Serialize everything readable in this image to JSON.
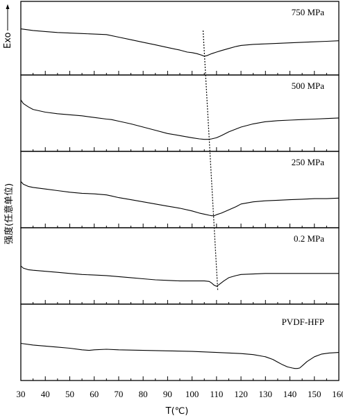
{
  "chart_data": {
    "type": "line",
    "xlabel": "T(℃)",
    "ylabel": "强度(任意单位)",
    "exo_label": "Exo",
    "xlim": [
      30,
      160
    ],
    "xticks": [
      30,
      40,
      50,
      60,
      70,
      80,
      90,
      100,
      110,
      120,
      130,
      140,
      150,
      160
    ],
    "grid": false,
    "legend": "none",
    "panels": [
      {
        "name": "750 MPa",
        "x": [
          30,
          35,
          40,
          45,
          50,
          55,
          60,
          65,
          70,
          75,
          80,
          85,
          90,
          95,
          98,
          100,
          102,
          104,
          105,
          106,
          107,
          108,
          110,
          112,
          115,
          118,
          120,
          125,
          130,
          135,
          140,
          145,
          150,
          155,
          160
        ],
        "y": [
          0.78,
          0.75,
          0.73,
          0.71,
          0.7,
          0.69,
          0.68,
          0.67,
          0.62,
          0.57,
          0.52,
          0.47,
          0.42,
          0.37,
          0.33,
          0.32,
          0.3,
          0.27,
          0.25,
          0.26,
          0.28,
          0.3,
          0.33,
          0.36,
          0.4,
          0.44,
          0.46,
          0.48,
          0.49,
          0.5,
          0.51,
          0.52,
          0.53,
          0.54,
          0.55
        ]
      },
      {
        "name": "500 MPa",
        "x": [
          30,
          31,
          33,
          35,
          40,
          45,
          50,
          55,
          60,
          65,
          67,
          70,
          75,
          80,
          85,
          90,
          95,
          100,
          103,
          105,
          107,
          108,
          110,
          112,
          115,
          120,
          125,
          130,
          135,
          140,
          145,
          150,
          155,
          160
        ],
        "y": [
          0.85,
          0.78,
          0.72,
          0.67,
          0.62,
          0.59,
          0.57,
          0.55,
          0.52,
          0.49,
          0.48,
          0.45,
          0.4,
          0.34,
          0.28,
          0.22,
          0.18,
          0.14,
          0.12,
          0.11,
          0.11,
          0.12,
          0.14,
          0.18,
          0.25,
          0.34,
          0.4,
          0.44,
          0.46,
          0.47,
          0.48,
          0.49,
          0.5,
          0.51
        ]
      },
      {
        "name": "250 MPa",
        "x": [
          30,
          31,
          33,
          35,
          40,
          45,
          50,
          55,
          60,
          65,
          67,
          70,
          75,
          80,
          85,
          90,
          95,
          100,
          103,
          105,
          107,
          108,
          109,
          110,
          112,
          115,
          118,
          120,
          125,
          130,
          135,
          140,
          145,
          150,
          155,
          160
        ],
        "y": [
          0.75,
          0.7,
          0.66,
          0.64,
          0.61,
          0.58,
          0.55,
          0.53,
          0.52,
          0.5,
          0.48,
          0.45,
          0.41,
          0.37,
          0.33,
          0.29,
          0.25,
          0.2,
          0.16,
          0.14,
          0.12,
          0.11,
          0.11,
          0.13,
          0.16,
          0.22,
          0.28,
          0.33,
          0.37,
          0.39,
          0.4,
          0.41,
          0.42,
          0.43,
          0.43,
          0.44
        ]
      },
      {
        "name": "0.2 MPa",
        "x": [
          30,
          31,
          33,
          35,
          40,
          45,
          50,
          55,
          60,
          65,
          70,
          75,
          80,
          85,
          90,
          95,
          100,
          105,
          107,
          108,
          109,
          110,
          111,
          113,
          115,
          118,
          120,
          125,
          130,
          135,
          140,
          145,
          150,
          155,
          160
        ],
        "y": [
          0.6,
          0.56,
          0.53,
          0.52,
          0.5,
          0.48,
          0.46,
          0.44,
          0.43,
          0.42,
          0.4,
          0.38,
          0.36,
          0.34,
          0.33,
          0.32,
          0.32,
          0.32,
          0.31,
          0.28,
          0.24,
          0.22,
          0.25,
          0.32,
          0.38,
          0.42,
          0.44,
          0.45,
          0.46,
          0.46,
          0.46,
          0.46,
          0.46,
          0.46,
          0.46
        ]
      },
      {
        "name": "PVDF-HFP",
        "x": [
          30,
          35,
          40,
          45,
          50,
          55,
          58,
          60,
          65,
          70,
          80,
          90,
          100,
          110,
          120,
          125,
          130,
          133,
          135,
          137,
          139,
          141,
          142,
          143,
          144,
          145,
          147,
          150,
          153,
          156,
          160
        ],
        "y": [
          0.58,
          0.55,
          0.53,
          0.51,
          0.49,
          0.46,
          0.45,
          0.46,
          0.47,
          0.46,
          0.45,
          0.44,
          0.43,
          0.41,
          0.39,
          0.37,
          0.33,
          0.28,
          0.23,
          0.18,
          0.14,
          0.12,
          0.11,
          0.11,
          0.12,
          0.16,
          0.24,
          0.33,
          0.38,
          0.4,
          0.41
        ]
      }
    ],
    "peak_guide": {
      "x": [
        104.5,
        110.5
      ]
    }
  }
}
